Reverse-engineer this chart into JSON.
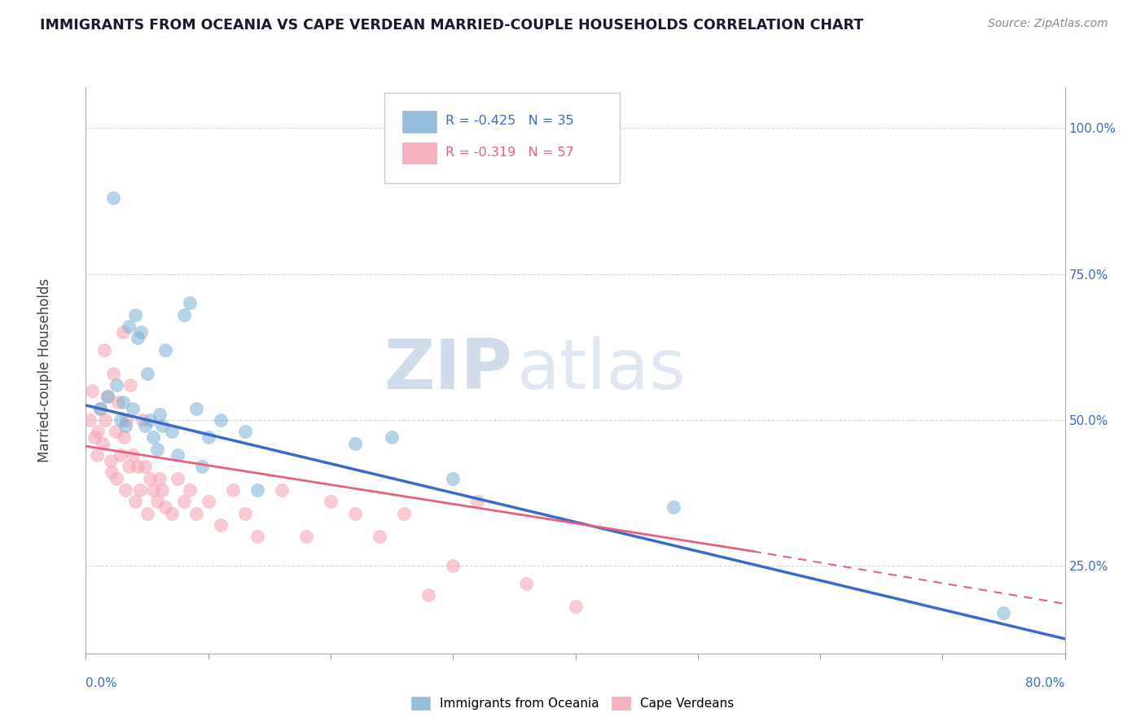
{
  "title": "IMMIGRANTS FROM OCEANIA VS CAPE VERDEAN MARRIED-COUPLE HOUSEHOLDS CORRELATION CHART",
  "source": "Source: ZipAtlas.com",
  "ylabel": "Married-couple Households",
  "legend1_label_r": "R = -0.425",
  "legend1_label_n": "N = 35",
  "legend2_label_r": "R = -0.319",
  "legend2_label_n": "N = 57",
  "legend1_series": "Immigrants from Oceania",
  "legend2_series": "Cape Verdeans",
  "blue_color": "#7BAFD4",
  "pink_color": "#F4A0B0",
  "blue_line_color": "#3A6BC9",
  "pink_line_color": "#E8607A",
  "background_color": "#FFFFFF",
  "xlim": [
    0.0,
    0.8
  ],
  "ylim": [
    0.1,
    1.07
  ],
  "blue_scatter_x": [
    0.012,
    0.018,
    0.022,
    0.025,
    0.028,
    0.03,
    0.032,
    0.035,
    0.038,
    0.04,
    0.042,
    0.045,
    0.048,
    0.05,
    0.052,
    0.055,
    0.058,
    0.06,
    0.062,
    0.065,
    0.07,
    0.075,
    0.08,
    0.085,
    0.09,
    0.1,
    0.11,
    0.13,
    0.22,
    0.3,
    0.48,
    0.75,
    0.095,
    0.14,
    0.25
  ],
  "blue_scatter_y": [
    0.52,
    0.54,
    0.88,
    0.56,
    0.5,
    0.53,
    0.49,
    0.66,
    0.52,
    0.68,
    0.64,
    0.65,
    0.49,
    0.58,
    0.5,
    0.47,
    0.45,
    0.51,
    0.49,
    0.62,
    0.48,
    0.44,
    0.68,
    0.7,
    0.52,
    0.47,
    0.5,
    0.48,
    0.46,
    0.4,
    0.35,
    0.17,
    0.42,
    0.38,
    0.47
  ],
  "pink_scatter_x": [
    0.003,
    0.005,
    0.007,
    0.009,
    0.01,
    0.012,
    0.014,
    0.015,
    0.016,
    0.018,
    0.02,
    0.021,
    0.022,
    0.024,
    0.025,
    0.026,
    0.028,
    0.03,
    0.031,
    0.032,
    0.033,
    0.035,
    0.036,
    0.038,
    0.04,
    0.042,
    0.044,
    0.046,
    0.048,
    0.05,
    0.052,
    0.055,
    0.058,
    0.06,
    0.062,
    0.065,
    0.07,
    0.075,
    0.08,
    0.085,
    0.09,
    0.1,
    0.11,
    0.12,
    0.13,
    0.14,
    0.16,
    0.18,
    0.2,
    0.22,
    0.24,
    0.26,
    0.28,
    0.3,
    0.32,
    0.36,
    0.4
  ],
  "pink_scatter_y": [
    0.5,
    0.55,
    0.47,
    0.44,
    0.48,
    0.52,
    0.46,
    0.62,
    0.5,
    0.54,
    0.43,
    0.41,
    0.58,
    0.48,
    0.4,
    0.53,
    0.44,
    0.65,
    0.47,
    0.38,
    0.5,
    0.42,
    0.56,
    0.44,
    0.36,
    0.42,
    0.38,
    0.5,
    0.42,
    0.34,
    0.4,
    0.38,
    0.36,
    0.4,
    0.38,
    0.35,
    0.34,
    0.4,
    0.36,
    0.38,
    0.34,
    0.36,
    0.32,
    0.38,
    0.34,
    0.3,
    0.38,
    0.3,
    0.36,
    0.34,
    0.3,
    0.34,
    0.2,
    0.25,
    0.36,
    0.22,
    0.18
  ],
  "blue_line_start_y": 0.525,
  "blue_line_end_y": 0.125,
  "pink_line_start_y": 0.455,
  "pink_line_solid_end_x": 0.545,
  "pink_line_solid_end_y": 0.275,
  "pink_line_dash_end_x": 0.8,
  "pink_line_dash_end_y": 0.185
}
